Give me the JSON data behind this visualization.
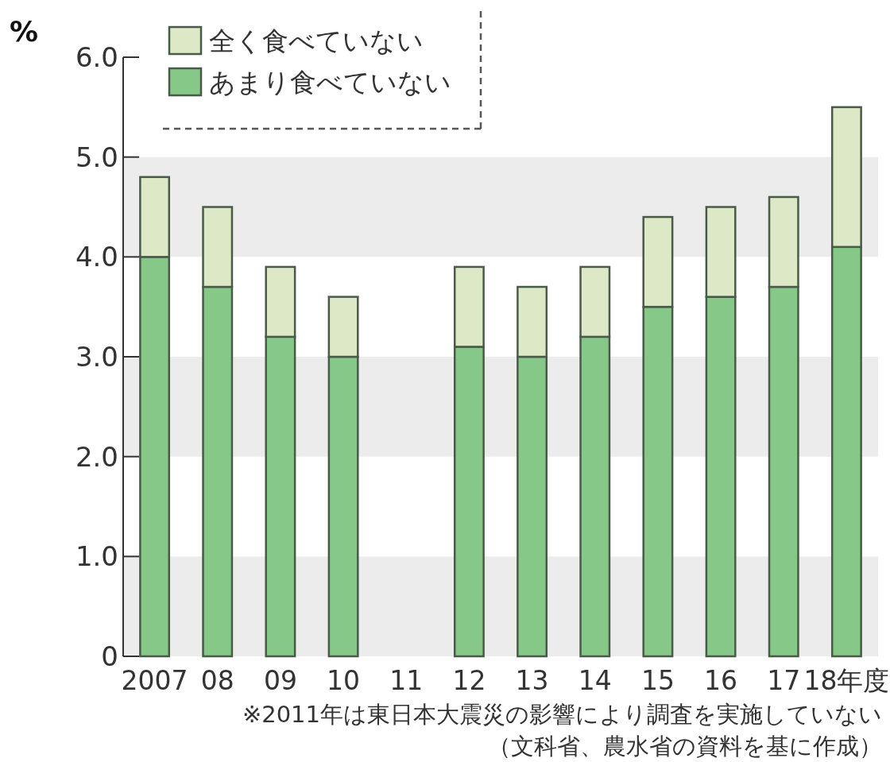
{
  "chart_data": {
    "type": "bar",
    "stacked": true,
    "ylabel": "%",
    "categories": [
      "2007",
      "08",
      "09",
      "10",
      "11",
      "12",
      "13",
      "14",
      "15",
      "16",
      "17",
      "18年度"
    ],
    "series": [
      {
        "name": "あまり食べていない",
        "color": "#86c887",
        "values": [
          4.0,
          3.7,
          3.2,
          3.0,
          null,
          3.1,
          3.0,
          3.2,
          3.5,
          3.6,
          3.7,
          4.1
        ]
      },
      {
        "name": "全く食べていない",
        "color": "#dde9c6",
        "values": [
          0.8,
          0.8,
          0.7,
          0.6,
          null,
          0.8,
          0.7,
          0.7,
          0.9,
          0.9,
          0.9,
          1.4
        ]
      }
    ],
    "ylim": [
      0,
      6
    ],
    "yticks": [
      0,
      {
        "value": 1,
        "label": "1.0"
      },
      {
        "value": 2,
        "label": "2.0"
      },
      {
        "value": 3,
        "label": "3.0"
      },
      {
        "value": 4,
        "label": "4.0"
      },
      {
        "value": 5,
        "label": "5.0"
      },
      {
        "value": 6,
        "label": "6.0"
      }
    ],
    "bands": [
      {
        "axis": "y",
        "from": 0,
        "to": 1,
        "color": "#ececec"
      },
      {
        "axis": "y",
        "from": 2,
        "to": 3,
        "color": "#ececec"
      },
      {
        "axis": "y",
        "from": 4,
        "to": 5,
        "color": "#ececec"
      }
    ],
    "legend": "top left",
    "annotations": [
      "※2011年は東日本大震災の影響により調査を実施していない",
      "（文科省、農水省の資料を基に作成）"
    ]
  }
}
